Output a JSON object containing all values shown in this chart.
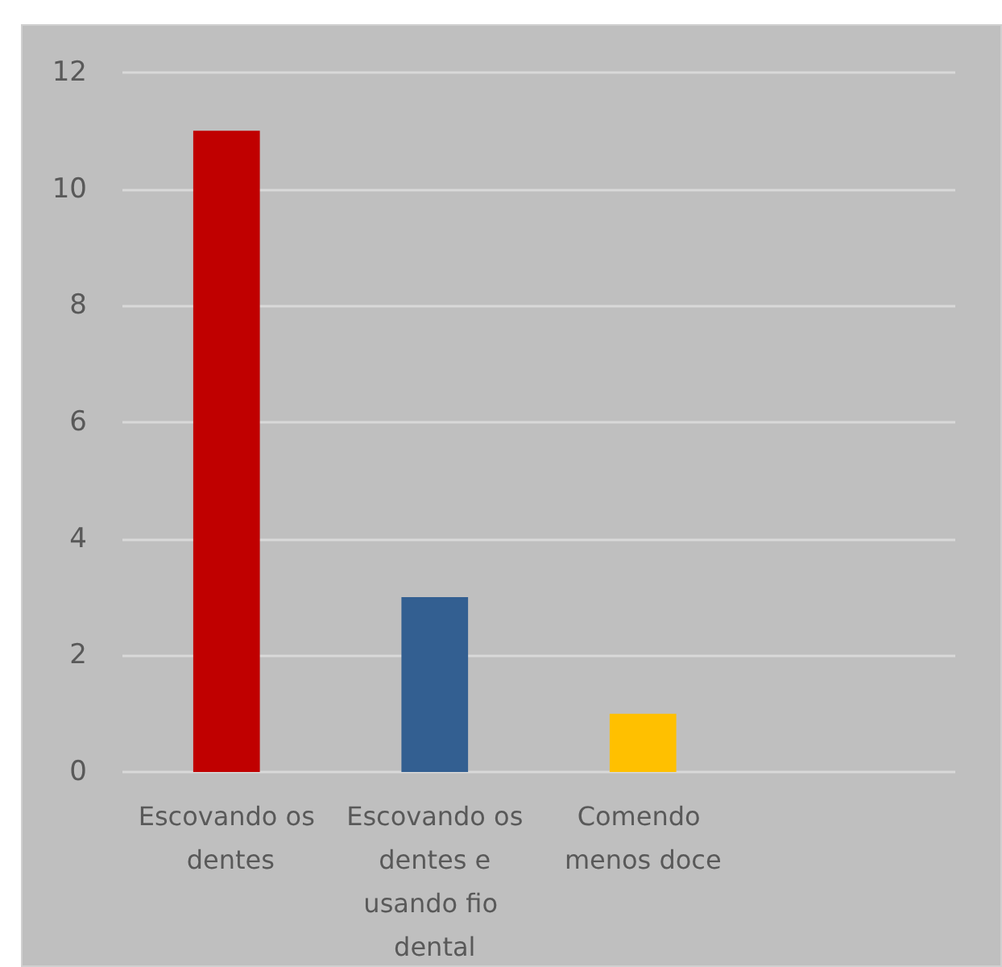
{
  "chart_data": {
    "type": "bar",
    "categories": [
      "Escovando os dentes",
      "Escovando os dentes e usando fio dental",
      "Comendo menos doce",
      null
    ],
    "values": [
      11,
      3,
      1,
      null
    ],
    "colors": [
      "#c00000",
      "#335f91",
      "#ffc000",
      "#888888"
    ],
    "ylim": [
      0,
      12
    ],
    "yticks": [
      0,
      2,
      4,
      6,
      8,
      10,
      12
    ],
    "grid": "y"
  }
}
